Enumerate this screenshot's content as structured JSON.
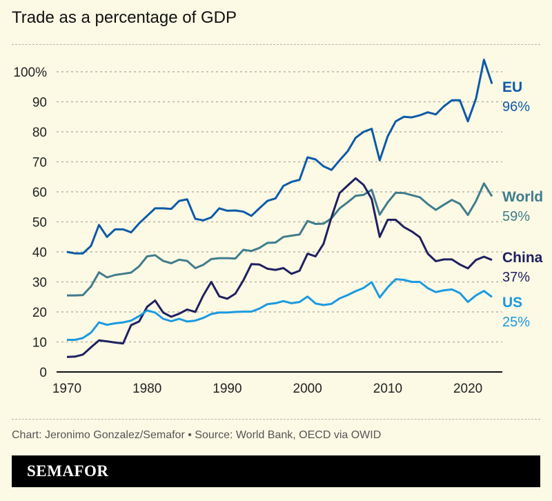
{
  "title": "Trade as a percentage of GDP",
  "source": "Chart: Jeronimo Gonzalez/Semafor • Source: World Bank, OECD via OWID",
  "brand": "SEMAFOR",
  "chart_data": {
    "type": "line",
    "title": "Trade as a percentage of GDP",
    "xlabel": "",
    "ylabel": "",
    "xlim": [
      1970,
      2023
    ],
    "ylim": [
      0,
      100
    ],
    "grid": true,
    "x_ticks": [
      "1970",
      "1980",
      "1990",
      "2000",
      "2010",
      "2020"
    ],
    "y_ticks": [
      "0",
      "10",
      "20",
      "30",
      "40",
      "50",
      "60",
      "70",
      "80",
      "90",
      "100%"
    ],
    "x": [
      1970,
      1971,
      1972,
      1973,
      1974,
      1975,
      1976,
      1977,
      1978,
      1979,
      1980,
      1981,
      1982,
      1983,
      1984,
      1985,
      1986,
      1987,
      1988,
      1989,
      1990,
      1991,
      1992,
      1993,
      1994,
      1995,
      1996,
      1997,
      1998,
      1999,
      2000,
      2001,
      2002,
      2003,
      2004,
      2005,
      2006,
      2007,
      2008,
      2009,
      2010,
      2011,
      2012,
      2013,
      2014,
      2015,
      2016,
      2017,
      2018,
      2019,
      2020,
      2021,
      2022,
      2023
    ],
    "series": [
      {
        "name": "EU",
        "end_label": "96%",
        "color": "#0a5aa8",
        "values": [
          40,
          39.5,
          39.5,
          42,
          49,
          45,
          47.5,
          47.5,
          46.5,
          49.5,
          52,
          54.5,
          54.5,
          54.3,
          57,
          57.5,
          51,
          50.5,
          51.5,
          54.5,
          53.7,
          53.8,
          53.4,
          52,
          54.5,
          57,
          57.8,
          62,
          63.3,
          64,
          71.5,
          70.8,
          68.5,
          67.3,
          70.5,
          73.5,
          78,
          80,
          81,
          70.5,
          78.5,
          83.5,
          85,
          84.8,
          85.5,
          86.5,
          85.8,
          88.5,
          90.5,
          90.5,
          83.5,
          91,
          104,
          96
        ]
      },
      {
        "name": "World",
        "end_label": "59%",
        "color": "#3f7c8c",
        "values": [
          25.5,
          25.5,
          25.6,
          28.5,
          33.2,
          31.5,
          32.3,
          32.7,
          33.1,
          35.2,
          38.5,
          38.9,
          37,
          36.2,
          37.4,
          37,
          34.6,
          35.7,
          37.6,
          37.9,
          37.9,
          37.8,
          40.7,
          40.3,
          41.3,
          43,
          43.1,
          45,
          45.4,
          45.8,
          50.3,
          49.3,
          49.4,
          51.2,
          54.5,
          56.5,
          58.7,
          59,
          60.7,
          52.4,
          56.5,
          59.7,
          59.6,
          58.9,
          58.2,
          55.9,
          54,
          55.7,
          57.3,
          56,
          52.3,
          56.9,
          62.8,
          58.5
        ]
      },
      {
        "name": "China",
        "end_label": "37%",
        "color": "#1e2060",
        "values": [
          5,
          5.1,
          5.8,
          8.2,
          10.5,
          10.2,
          9.8,
          9.5,
          15.6,
          16.8,
          21.7,
          23.8,
          19.8,
          18.4,
          19.4,
          20.8,
          20,
          25.5,
          30,
          25.2,
          24.4,
          26.1,
          30.5,
          35.9,
          35.8,
          34.4,
          34,
          34.6,
          32.7,
          33.7,
          39.4,
          38.5,
          42.7,
          51.6,
          59.6,
          62.1,
          64.5,
          62.3,
          57.6,
          45,
          50.7,
          50.7,
          48.3,
          46.8,
          44.9,
          39.4,
          36.9,
          37.5,
          37.5,
          35.8,
          34.5,
          37.3,
          38.4,
          37.3
        ]
      },
      {
        "name": "US",
        "end_label": "25%",
        "color": "#1a9ae0",
        "values": [
          10.7,
          10.7,
          11.3,
          13.1,
          16.5,
          15.7,
          16.2,
          16.5,
          17.1,
          18.6,
          20.5,
          19.8,
          17.7,
          16.9,
          17.7,
          16.8,
          17.1,
          18,
          19.3,
          19.8,
          19.8,
          20,
          20.1,
          20.1,
          21.1,
          22.6,
          22.9,
          23.6,
          22.9,
          23.3,
          25.1,
          22.8,
          22.3,
          22.7,
          24.5,
          25.6,
          26.9,
          28,
          29.9,
          24.8,
          28.2,
          30.9,
          30.7,
          30,
          30,
          27.9,
          26.6,
          27.2,
          27.5,
          26.3,
          23.3,
          25.5,
          27,
          25
        ]
      }
    ]
  }
}
